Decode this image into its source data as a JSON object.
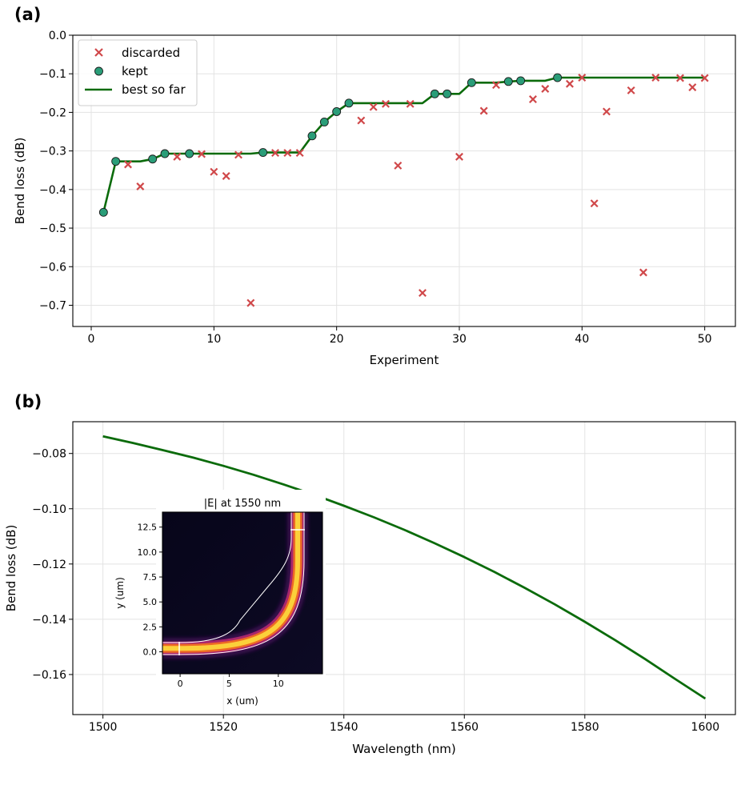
{
  "colors": {
    "discarded": "#d0484a",
    "kept_fill": "#2a9d78",
    "kept_edge": "#1a1a1a",
    "best_line": "#0b6b0b",
    "spectrum_line": "#0b6b0b"
  },
  "chart_data": [
    {
      "panel_label": "(a)",
      "type": "scatter",
      "xlabel": "Experiment",
      "ylabel": "Bend loss (dB)",
      "xlim": [
        -1.5,
        52.5
      ],
      "ylim": [
        -0.755,
        0.0
      ],
      "xticks": [
        0,
        10,
        20,
        30,
        40,
        50
      ],
      "yticks": [
        0.0,
        -0.1,
        -0.2,
        -0.3,
        -0.4,
        -0.5,
        -0.6,
        -0.7
      ],
      "xtick_labels": [
        "0",
        "10",
        "20",
        "30",
        "40",
        "50"
      ],
      "ytick_labels": [
        "0.0",
        "−0.1",
        "−0.2",
        "−0.3",
        "−0.4",
        "−0.5",
        "−0.6",
        "−0.7"
      ],
      "grid": true,
      "legend_position": "top-left",
      "series": [
        {
          "name": "discarded",
          "marker": "x",
          "x": [
            3,
            4,
            7,
            9,
            10,
            11,
            12,
            13,
            15,
            16,
            17,
            22,
            23,
            24,
            25,
            26,
            27,
            30,
            32,
            33,
            36,
            37,
            39,
            40,
            41,
            42,
            44,
            45,
            46,
            48,
            49,
            50
          ],
          "y": [
            -0.335,
            -0.392,
            -0.315,
            -0.308,
            -0.354,
            -0.365,
            -0.31,
            -0.694,
            -0.305,
            -0.305,
            -0.305,
            -0.221,
            -0.186,
            -0.178,
            -0.338,
            -0.178,
            -0.668,
            -0.315,
            -0.196,
            -0.129,
            -0.166,
            -0.139,
            -0.126,
            -0.11,
            -0.436,
            -0.198,
            -0.143,
            -0.615,
            -0.11,
            -0.111,
            -0.135,
            -0.111
          ]
        },
        {
          "name": "kept",
          "marker": "circle",
          "x": [
            1,
            2,
            5,
            6,
            8,
            14,
            18,
            19,
            20,
            21,
            28,
            29,
            31,
            34,
            35,
            38
          ],
          "y": [
            -0.459,
            -0.327,
            -0.321,
            -0.307,
            -0.307,
            -0.304,
            -0.261,
            -0.225,
            -0.198,
            -0.176,
            -0.152,
            -0.152,
            -0.123,
            -0.12,
            -0.118,
            -0.11
          ]
        },
        {
          "name": "best so far",
          "marker": "line",
          "x": [
            1,
            2,
            3,
            4,
            5,
            6,
            7,
            8,
            9,
            10,
            11,
            12,
            13,
            14,
            15,
            16,
            17,
            18,
            19,
            20,
            21,
            22,
            23,
            24,
            25,
            26,
            27,
            28,
            29,
            30,
            31,
            32,
            33,
            34,
            35,
            36,
            37,
            38,
            39,
            40,
            41,
            42,
            43,
            44,
            45,
            46,
            47,
            48,
            49,
            50
          ],
          "y": [
            -0.459,
            -0.327,
            -0.327,
            -0.327,
            -0.321,
            -0.307,
            -0.307,
            -0.307,
            -0.307,
            -0.307,
            -0.307,
            -0.307,
            -0.307,
            -0.304,
            -0.304,
            -0.304,
            -0.304,
            -0.261,
            -0.225,
            -0.198,
            -0.176,
            -0.176,
            -0.176,
            -0.176,
            -0.176,
            -0.176,
            -0.176,
            -0.152,
            -0.152,
            -0.152,
            -0.123,
            -0.123,
            -0.123,
            -0.12,
            -0.118,
            -0.118,
            -0.118,
            -0.11,
            -0.11,
            -0.11,
            -0.11,
            -0.11,
            -0.11,
            -0.11,
            -0.11,
            -0.11,
            -0.11,
            -0.11,
            -0.11,
            -0.11
          ]
        }
      ]
    },
    {
      "panel_label": "(b)",
      "type": "line",
      "xlabel": "Wavelength (nm)",
      "ylabel": "Bend loss (dB)",
      "xlim": [
        1495,
        1605
      ],
      "ylim": [
        -0.1745,
        -0.0685
      ],
      "xticks": [
        1500,
        1520,
        1540,
        1560,
        1580,
        1600
      ],
      "yticks": [
        -0.08,
        -0.1,
        -0.12,
        -0.14,
        -0.16
      ],
      "xtick_labels": [
        "1500",
        "1520",
        "1540",
        "1560",
        "1580",
        "1600"
      ],
      "ytick_labels": [
        "−0.08",
        "−0.10",
        "−0.12",
        "−0.14",
        "−0.16"
      ],
      "grid": true,
      "series": [
        {
          "x": [
            1500,
            1505,
            1510,
            1515,
            1520,
            1525,
            1530,
            1535,
            1540,
            1545,
            1550,
            1555,
            1560,
            1565,
            1570,
            1575,
            1580,
            1585,
            1590,
            1595,
            1600
          ],
          "y": [
            -0.0738,
            -0.0762,
            -0.0788,
            -0.0815,
            -0.0845,
            -0.0877,
            -0.0912,
            -0.0949,
            -0.0989,
            -0.1031,
            -0.1076,
            -0.1124,
            -0.1175,
            -0.1229,
            -0.1286,
            -0.1346,
            -0.1409,
            -0.1475,
            -0.1544,
            -0.1616,
            -0.1687
          ]
        }
      ],
      "inset": {
        "type": "heatmap",
        "title": "|E| at 1550 nm",
        "xlabel": "x (um)",
        "ylabel": "y (um)",
        "xlim": [
          -1.8,
          14.5
        ],
        "ylim": [
          -2.2,
          14.0
        ],
        "xticks": [
          0,
          5,
          10
        ],
        "yticks": [
          0.0,
          2.5,
          5.0,
          7.5,
          10.0,
          12.5
        ],
        "xtick_labels": [
          "0",
          "5",
          "10"
        ],
        "ytick_labels": [
          "0.0",
          "2.5",
          "5.0",
          "7.5",
          "10.0",
          "12.5"
        ],
        "colormap": "inferno"
      }
    }
  ]
}
